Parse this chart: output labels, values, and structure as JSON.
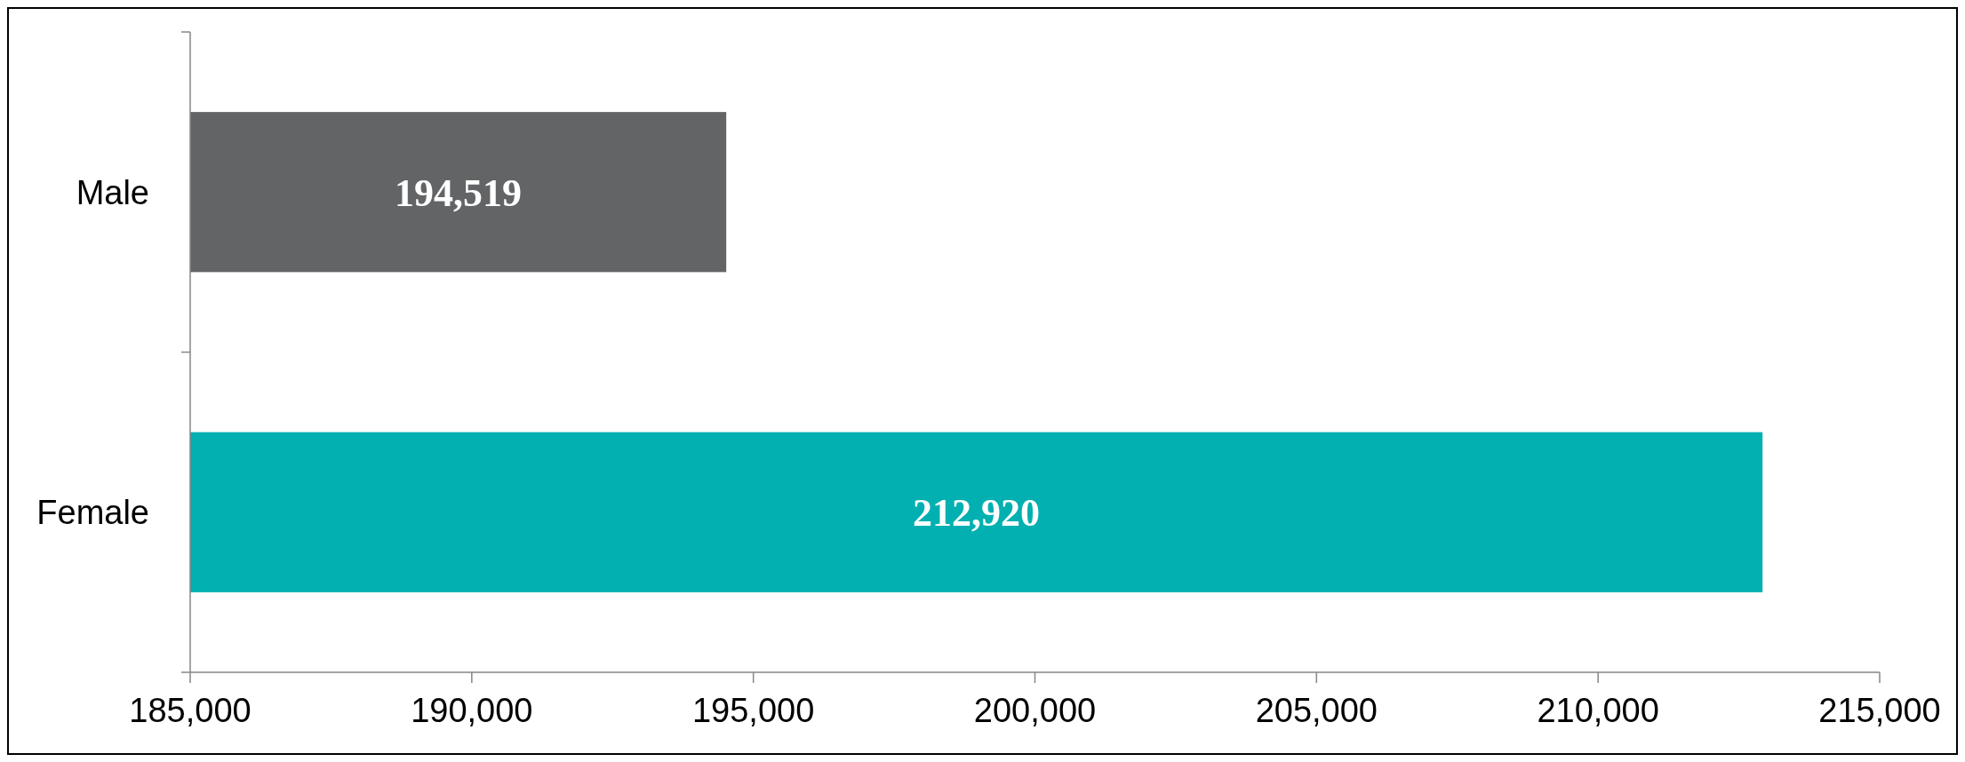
{
  "chart_data": {
    "type": "bar",
    "orientation": "horizontal",
    "categories": [
      "Male",
      "Female"
    ],
    "values": [
      194519,
      212920
    ],
    "colors": [
      "#636466",
      "#02b0b1"
    ],
    "xlim": [
      185000,
      215000
    ],
    "xticks": [
      {
        "value": 185000,
        "label": "185,000"
      },
      {
        "value": 190000,
        "label": "190,000"
      },
      {
        "value": 195000,
        "label": "195,000"
      },
      {
        "value": 200000,
        "label": "200,000"
      },
      {
        "value": 205000,
        "label": "205,000"
      },
      {
        "value": 210000,
        "label": "210,000"
      },
      {
        "value": 215000,
        "label": "215,000"
      }
    ],
    "value_labels": [
      "194,519",
      "212,920"
    ],
    "grid": false
  }
}
